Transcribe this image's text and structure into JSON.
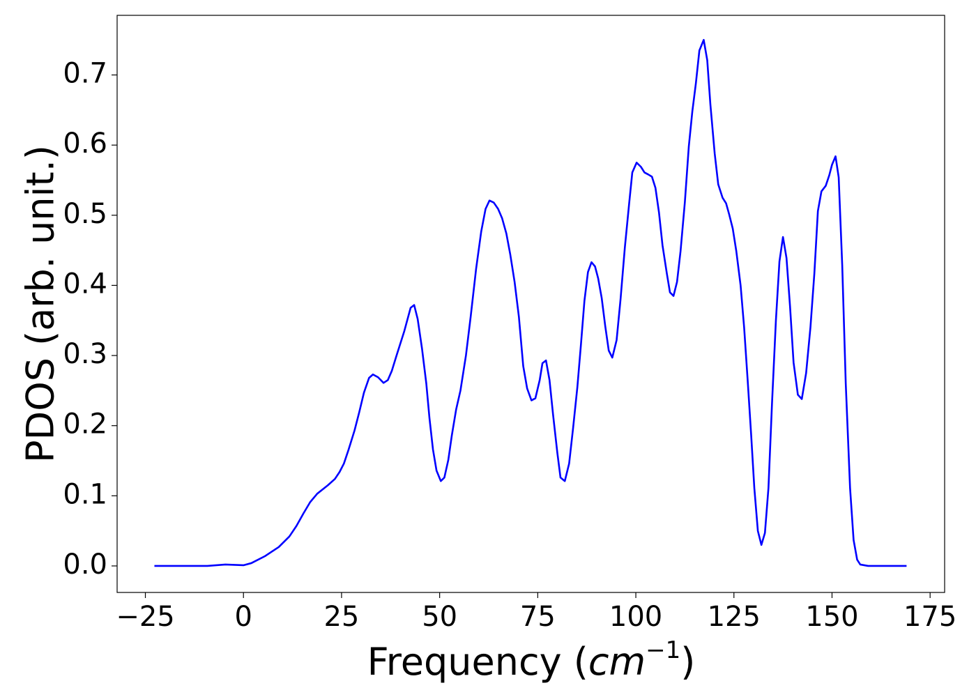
{
  "chart_data": {
    "type": "line",
    "y_label": "PDOS (arb. unit.)",
    "x_label": [
      "Frequency (",
      "cm",
      "−1",
      ")"
    ],
    "xlim": [
      -32.2,
      178.7
    ],
    "ylim": [
      -0.0378,
      0.785
    ],
    "xticks": [
      {
        "value": -25,
        "label": "−25"
      },
      0,
      25,
      50,
      75,
      100,
      125,
      150,
      175
    ],
    "yticks": [
      {
        "value": 0,
        "label": "0.0"
      },
      0.1,
      0.2,
      0.3,
      0.4,
      0.5,
      0.6,
      0.7
    ],
    "series": [
      {
        "color": "#0000ff",
        "x": [
          -22.7,
          -9.2,
          -4.6,
          0,
          2,
          5.5,
          9,
          11.7,
          13.5,
          15.3,
          17,
          18.8,
          21.5,
          23.3,
          24.5,
          25.6,
          26.8,
          28.3,
          29.5,
          30.7,
          32,
          33,
          34.3,
          35.7,
          36.8,
          37.8,
          38.9,
          41,
          42.6,
          43.5,
          44.4,
          45.5,
          46.6,
          47.4,
          48.3,
          49.2,
          50.3,
          51.2,
          52.2,
          53.1,
          54.2,
          55.3,
          56.7,
          57.9,
          59.3,
          60.6,
          61.7,
          62.7,
          63.8,
          64.9,
          65.9,
          67,
          68,
          69.1,
          70.2,
          71.3,
          72.3,
          73.4,
          74.4,
          75.5,
          76.2,
          77.1,
          78,
          78.9,
          80,
          80.8,
          81.9,
          83,
          84,
          85.1,
          86,
          86.9,
          87.8,
          88.7,
          89.6,
          90.4,
          91.3,
          92.2,
          93.1,
          94,
          95.1,
          96.1,
          97.2,
          98.3,
          99.1,
          100.2,
          101.3,
          102.2,
          103.2,
          104.1,
          105,
          105.9,
          106.8,
          107.9,
          108.7,
          109.6,
          110.5,
          111.4,
          112.5,
          113.5,
          114.4,
          115.3,
          116.2,
          117.3,
          118.2,
          119,
          120.1,
          121,
          122.1,
          123,
          123.8,
          124.7,
          125.6,
          126.7,
          127.6,
          128.5,
          129.4,
          130.2,
          131.1,
          132,
          132.9,
          133.8,
          134.7,
          135.7,
          136.6,
          137.5,
          138.4,
          139.3,
          140.2,
          141.3,
          142.3,
          143.4,
          144.5,
          145.5,
          146.4,
          147.3,
          148.4,
          149.3,
          150,
          150.9,
          151.7,
          152.6,
          153.5,
          154.6,
          155.5,
          156.4,
          157.2,
          159.2,
          169
        ],
        "values": [
          0,
          0,
          0.002,
          0.001,
          0.004,
          0.014,
          0.027,
          0.042,
          0.057,
          0.075,
          0.091,
          0.103,
          0.115,
          0.124,
          0.134,
          0.146,
          0.166,
          0.193,
          0.219,
          0.247,
          0.268,
          0.273,
          0.269,
          0.261,
          0.265,
          0.278,
          0.298,
          0.335,
          0.368,
          0.372,
          0.352,
          0.31,
          0.26,
          0.211,
          0.166,
          0.136,
          0.121,
          0.126,
          0.151,
          0.186,
          0.223,
          0.25,
          0.3,
          0.355,
          0.424,
          0.477,
          0.509,
          0.521,
          0.518,
          0.509,
          0.496,
          0.474,
          0.444,
          0.405,
          0.355,
          0.285,
          0.253,
          0.236,
          0.239,
          0.265,
          0.289,
          0.293,
          0.265,
          0.216,
          0.161,
          0.126,
          0.121,
          0.146,
          0.196,
          0.255,
          0.315,
          0.378,
          0.419,
          0.433,
          0.427,
          0.41,
          0.382,
          0.342,
          0.307,
          0.297,
          0.322,
          0.38,
          0.454,
          0.517,
          0.561,
          0.575,
          0.569,
          0.561,
          0.558,
          0.555,
          0.539,
          0.504,
          0.457,
          0.417,
          0.39,
          0.385,
          0.405,
          0.449,
          0.519,
          0.598,
          0.648,
          0.688,
          0.735,
          0.75,
          0.721,
          0.658,
          0.588,
          0.544,
          0.525,
          0.517,
          0.501,
          0.481,
          0.449,
          0.4,
          0.34,
          0.265,
          0.186,
          0.111,
          0.05,
          0.03,
          0.047,
          0.111,
          0.231,
          0.35,
          0.434,
          0.469,
          0.439,
          0.37,
          0.29,
          0.244,
          0.238,
          0.275,
          0.34,
          0.417,
          0.506,
          0.534,
          0.542,
          0.557,
          0.572,
          0.584,
          0.554,
          0.429,
          0.26,
          0.111,
          0.037,
          0.009,
          0.002,
          0,
          0
        ]
      }
    ]
  }
}
